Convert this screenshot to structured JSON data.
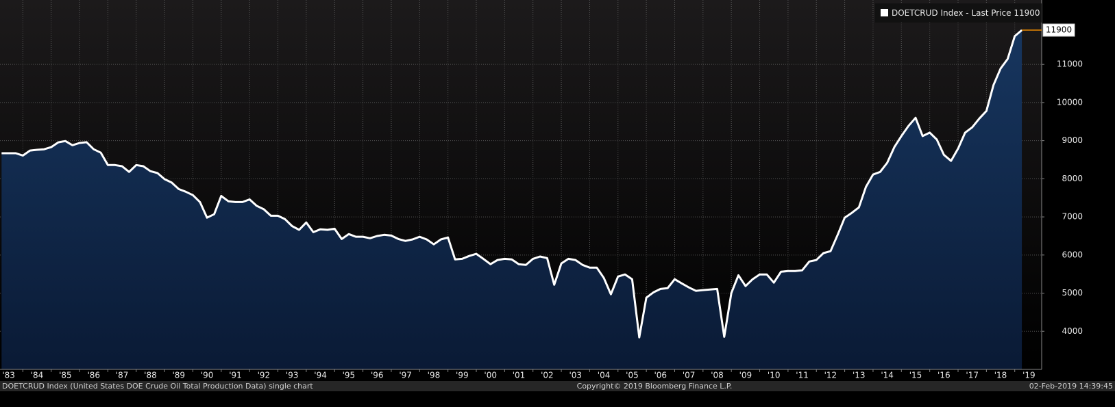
{
  "chart_data": {
    "type": "area",
    "series": [
      {
        "name": "DOETCRUD Index - Last Price",
        "color": "#ffffff",
        "values": [
          8670,
          8670,
          8670,
          8610,
          8740,
          8760,
          8775,
          8830,
          8955,
          8990,
          8880,
          8940,
          8960,
          8775,
          8685,
          8360,
          8360,
          8330,
          8180,
          8360,
          8330,
          8200,
          8150,
          7990,
          7900,
          7730,
          7660,
          7570,
          7390,
          6980,
          7070,
          7550,
          7410,
          7390,
          7390,
          7460,
          7290,
          7200,
          7030,
          7030,
          6940,
          6760,
          6660,
          6855,
          6600,
          6675,
          6660,
          6690,
          6420,
          6550,
          6480,
          6480,
          6440,
          6500,
          6530,
          6510,
          6420,
          6370,
          6410,
          6480,
          6410,
          6280,
          6410,
          6460,
          5885,
          5900,
          5975,
          6030,
          5900,
          5760,
          5870,
          5900,
          5885,
          5760,
          5740,
          5900,
          5960,
          5920,
          5220,
          5780,
          5900,
          5870,
          5740,
          5670,
          5670,
          5400,
          4970,
          5435,
          5490,
          5365,
          3840,
          4880,
          5020,
          5110,
          5130,
          5365,
          5255,
          5150,
          5060,
          5080,
          5095,
          5110,
          3855,
          5005,
          5470,
          5185,
          5365,
          5490,
          5490,
          5275,
          5560,
          5580,
          5580,
          5600,
          5830,
          5870,
          6050,
          6100,
          6530,
          6980,
          7105,
          7250,
          7790,
          8110,
          8180,
          8420,
          8830,
          9120,
          9385,
          9600,
          9120,
          9210,
          9030,
          8630,
          8470,
          8790,
          9210,
          9350,
          9580,
          9780,
          10460,
          10890,
          11145,
          11740,
          11900
        ]
      }
    ],
    "x": [
      1983.25,
      1983.5,
      1983.75,
      1984,
      1984.25,
      1984.5,
      1984.75,
      1985,
      1985.25,
      1985.5,
      1985.75,
      1986,
      1986.25,
      1986.5,
      1986.75,
      1987,
      1987.25,
      1987.5,
      1987.75,
      1988,
      1988.25,
      1988.5,
      1988.75,
      1989,
      1989.25,
      1989.5,
      1989.75,
      1990,
      1990.25,
      1990.5,
      1990.75,
      1991,
      1991.25,
      1991.5,
      1991.75,
      1992,
      1992.25,
      1992.5,
      1992.75,
      1993,
      1993.25,
      1993.5,
      1993.75,
      1994,
      1994.25,
      1994.5,
      1994.75,
      1995,
      1995.25,
      1995.5,
      1995.75,
      1996,
      1996.25,
      1996.5,
      1996.75,
      1997,
      1997.25,
      1997.5,
      1997.75,
      1998,
      1998.25,
      1998.5,
      1998.75,
      1999,
      1999.25,
      1999.5,
      1999.75,
      2000,
      2000.25,
      2000.5,
      2000.75,
      2001,
      2001.25,
      2001.5,
      2001.75,
      2002,
      2002.25,
      2002.5,
      2002.75,
      2003,
      2003.25,
      2003.5,
      2003.75,
      2004,
      2004.25,
      2004.5,
      2004.75,
      2005,
      2005.25,
      2005.5,
      2005.75,
      2006,
      2006.25,
      2006.5,
      2006.75,
      2007,
      2007.25,
      2007.5,
      2007.75,
      2008,
      2008.25,
      2008.5,
      2008.75,
      2009,
      2009.25,
      2009.5,
      2009.75,
      2010,
      2010.25,
      2010.5,
      2010.75,
      2011,
      2011.25,
      2011.5,
      2011.75,
      2012,
      2012.25,
      2012.5,
      2012.75,
      2013,
      2013.25,
      2013.5,
      2013.75,
      2014,
      2014.25,
      2014.5,
      2014.75,
      2015,
      2015.25,
      2015.5,
      2015.75,
      2016,
      2016.25,
      2016.5,
      2016.75,
      2017,
      2017.25,
      2017.5,
      2017.75,
      2018,
      2018.25,
      2018.5,
      2018.75,
      2019,
      2019.25
    ],
    "xlim": [
      1983,
      2019.95
    ],
    "xticks": [
      {
        "value": 1983,
        "label": "'83"
      },
      {
        "value": 1984,
        "label": "'84"
      },
      {
        "value": 1985,
        "label": "'85"
      },
      {
        "value": 1986,
        "label": "'86"
      },
      {
        "value": 1987,
        "label": "'87"
      },
      {
        "value": 1988,
        "label": "'88"
      },
      {
        "value": 1989,
        "label": "'89"
      },
      {
        "value": 1990,
        "label": "'90"
      },
      {
        "value": 1991,
        "label": "'91"
      },
      {
        "value": 1992,
        "label": "'92"
      },
      {
        "value": 1993,
        "label": "'93"
      },
      {
        "value": 1994,
        "label": "'94"
      },
      {
        "value": 1995,
        "label": "'95"
      },
      {
        "value": 1996,
        "label": "'96"
      },
      {
        "value": 1997,
        "label": "'97"
      },
      {
        "value": 1998,
        "label": "'98"
      },
      {
        "value": 1999,
        "label": "'99"
      },
      {
        "value": 2000,
        "label": "'00"
      },
      {
        "value": 2001,
        "label": "'01"
      },
      {
        "value": 2002,
        "label": "'02"
      },
      {
        "value": 2003,
        "label": "'03"
      },
      {
        "value": 2004,
        "label": "'04"
      },
      {
        "value": 2005,
        "label": "'05"
      },
      {
        "value": 2006,
        "label": "'06"
      },
      {
        "value": 2007,
        "label": "'07"
      },
      {
        "value": 2008,
        "label": "'08"
      },
      {
        "value": 2009,
        "label": "'09"
      },
      {
        "value": 2010,
        "label": "'10"
      },
      {
        "value": 2011,
        "label": "'11"
      },
      {
        "value": 2012,
        "label": "'12"
      },
      {
        "value": 2013,
        "label": "'13"
      },
      {
        "value": 2014,
        "label": "'14"
      },
      {
        "value": 2015,
        "label": "'15"
      },
      {
        "value": 2016,
        "label": "'16"
      },
      {
        "value": 2017,
        "label": "'17"
      },
      {
        "value": 2018,
        "label": "'18"
      },
      {
        "value": 2019,
        "label": "'19"
      }
    ],
    "ylim": [
      3000,
      12690
    ],
    "yticks": [
      4000,
      5000,
      6000,
      7000,
      8000,
      9000,
      10000,
      11000
    ],
    "grid": true,
    "legend": "upper right",
    "last_price_color": "#f08c00",
    "footer_left": "DOETCRUD Index (United States DOE Crude Oil Total Production Data) single chart",
    "footer_center": "Copyright© 2019 Bloomberg Finance L.P.",
    "footer_right": "02-Feb-2019 14:39:45"
  }
}
